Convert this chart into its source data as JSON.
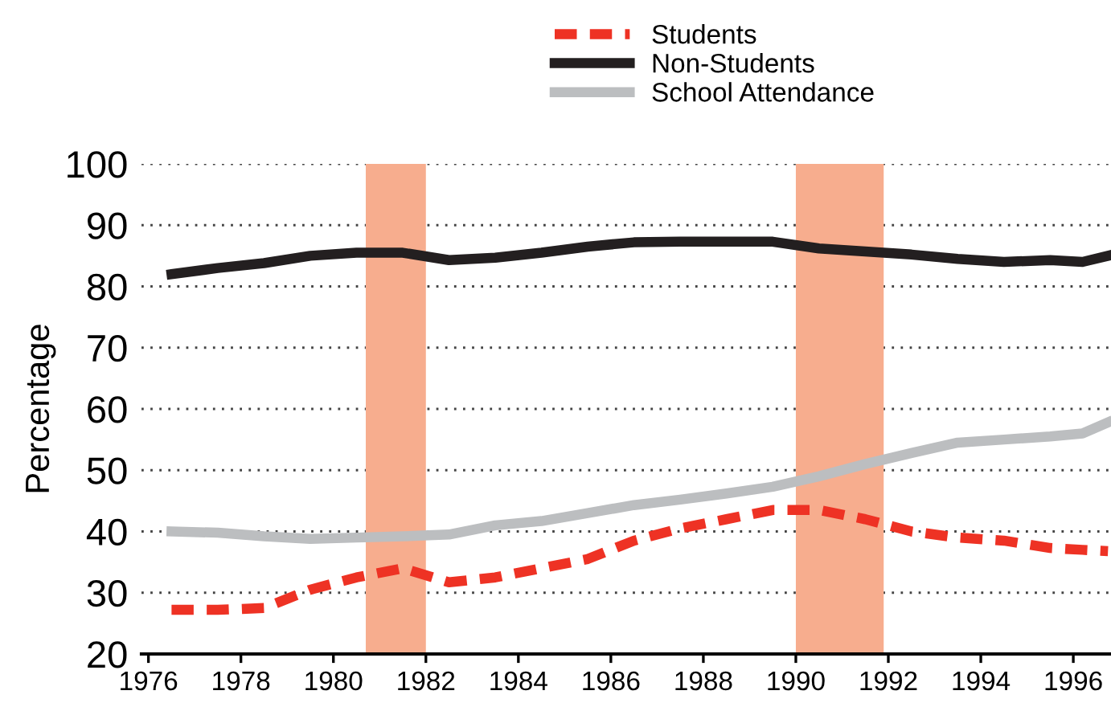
{
  "chart_data": {
    "type": "line",
    "ylabel": "Percentage",
    "x": [
      1976.5,
      1977.5,
      1978.5,
      1979.5,
      1980.5,
      1981.5,
      1982.5,
      1983.5,
      1984.5,
      1985.5,
      1986.5,
      1987.5,
      1988.5,
      1989.5,
      1990.5,
      1991.5,
      1992.5,
      1993.5,
      1994.5,
      1995.5,
      1996.2,
      1996.75
    ],
    "series": [
      {
        "name": "Students",
        "color": "#ee3224",
        "line_style": "dashed",
        "values": [
          27.2,
          27.2,
          27.5,
          30.5,
          32.5,
          34,
          31.7,
          32.5,
          34,
          35.5,
          38.5,
          40.5,
          42,
          43.5,
          43.5,
          42,
          40,
          39,
          38.5,
          37.3,
          37,
          36.8
        ]
      },
      {
        "name": "Non-Students",
        "color": "#231f20",
        "line_style": "solid",
        "values": [
          82,
          83,
          83.8,
          85,
          85.5,
          85.5,
          84.3,
          84.7,
          85.5,
          86.5,
          87.2,
          87.3,
          87.3,
          87.3,
          86.2,
          85.7,
          85.2,
          84.5,
          84,
          84.3,
          84,
          85
        ]
      },
      {
        "name": "School Attendance",
        "color": "#bcbec0",
        "line_style": "solid",
        "values": [
          40,
          39.8,
          39.2,
          38.8,
          39,
          39.2,
          39.5,
          41,
          41.7,
          43,
          44.3,
          45.2,
          46.2,
          47.3,
          49,
          51,
          52.8,
          54.5,
          55,
          55.5,
          56,
          57.8
        ]
      }
    ],
    "bands": [
      {
        "axis": "x",
        "from": 1980.7,
        "to": 1982,
        "color": "#f7ad8e"
      },
      {
        "axis": "x",
        "from": 1990,
        "to": 1991.9,
        "color": "#f7ad8e"
      }
    ],
    "xlim": [
      1975.85,
      1996.85
    ],
    "xticks": [
      1976,
      1978,
      1980,
      1982,
      1984,
      1986,
      1988,
      1990,
      1992,
      1994,
      1996
    ],
    "ylim": [
      20,
      100
    ],
    "yticks": [
      20,
      30,
      40,
      50,
      60,
      70,
      80,
      90,
      100
    ],
    "grid": "y",
    "legend": "top",
    "marker": "none"
  }
}
